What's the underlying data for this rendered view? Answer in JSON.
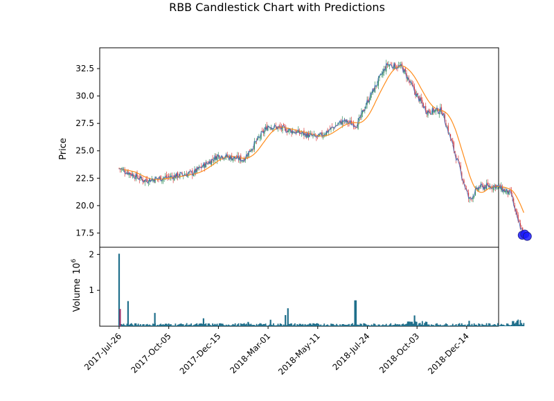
{
  "title": "RBB Candlestick Chart with Predictions",
  "colors": {
    "up": "#2e8b57",
    "down": "#d93a3a",
    "ma_orange": "#ff8c1a",
    "ma_blue": "#4a6fbf",
    "volume": "#1f6f8b",
    "prediction": "#1a1aff"
  },
  "chart_data": [
    {
      "type": "candlestick",
      "ylabel": "Price",
      "ylim": [
        16.2,
        34.4
      ],
      "yticks": [
        "17.5",
        "20.0",
        "22.5",
        "25.0",
        "27.5",
        "30.0",
        "32.5"
      ],
      "xticks": [
        "2017-Jul-26",
        "2017-Oct-05",
        "2017-Dec-15",
        "2018-Mar-01",
        "2018-May-11",
        "2018-Jul-24",
        "2018-Oct-03",
        "2018-Dec-14"
      ],
      "approx_close_trajectory": {
        "x_ticks_position": [
          0,
          0.2,
          0.5,
          1,
          1.5,
          2.0,
          2.5,
          3.0,
          3.5,
          4.0,
          4.5,
          4.8,
          5.0,
          5.4,
          5.7,
          6.0,
          6.2,
          6.5,
          6.85,
          7.05,
          7.25
        ],
        "close": [
          23.4,
          23.0,
          22.3,
          22.6,
          23.0,
          24.6,
          24.2,
          27.3,
          26.8,
          26.2,
          27.7,
          27.4,
          29.5,
          32.9,
          32.6,
          30.0,
          28.6,
          28.7,
          23.5,
          20.5,
          21.7
        ]
      },
      "close_late": {
        "x_ticks_position": [
          7.6,
          7.9,
          8.0,
          8.15
        ],
        "close": [
          21.8,
          21.0,
          19.0,
          17.3
        ]
      },
      "predictions": {
        "x_ticks_position": [
          8.12,
          8.17,
          8.22
        ],
        "close": [
          17.3,
          17.4,
          17.2
        ]
      }
    },
    {
      "type": "bar",
      "ylabel": "Volume",
      "scale_label": "10^6",
      "ylim": [
        0,
        2.2
      ],
      "yticks": [
        "1",
        "2"
      ],
      "spikes": [
        {
          "x_ticks_position": 0.0,
          "value": 2.02
        },
        {
          "x_ticks_position": 0.02,
          "value": 0.48
        },
        {
          "x_ticks_position": 0.18,
          "value": 0.7
        },
        {
          "x_ticks_position": 0.72,
          "value": 0.37
        },
        {
          "x_ticks_position": 1.7,
          "value": 0.22
        },
        {
          "x_ticks_position": 2.6,
          "value": 0.12
        },
        {
          "x_ticks_position": 3.05,
          "value": 0.18
        },
        {
          "x_ticks_position": 3.35,
          "value": 0.31
        },
        {
          "x_ticks_position": 3.4,
          "value": 0.5
        },
        {
          "x_ticks_position": 4.75,
          "value": 0.72
        },
        {
          "x_ticks_position": 4.77,
          "value": 0.72
        },
        {
          "x_ticks_position": 5.95,
          "value": 0.3
        },
        {
          "x_ticks_position": 7.05,
          "value": 0.15
        }
      ],
      "base_volume": 0.05
    }
  ]
}
